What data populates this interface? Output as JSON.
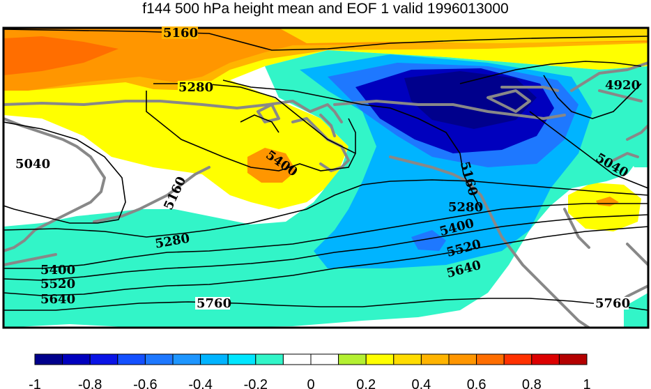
{
  "title": "f144 500 hPa height mean and EOF 1 valid 1996013000",
  "colorbar": {
    "colors": [
      "#00008c",
      "#0000be",
      "#0a14e6",
      "#1450ff",
      "#1e78ff",
      "#1e96ff",
      "#00b4ff",
      "#00e6ff",
      "#32f5c8",
      "#ffffff",
      "#ffffff",
      "#b4f032",
      "#ffff00",
      "#ffdc00",
      "#ffb400",
      "#ff9600",
      "#ff6e00",
      "#ff3200",
      "#dc0000",
      "#b40000"
    ],
    "tick_labels": [
      "-1",
      "-0.8",
      "-0.6",
      "-0.4",
      "-0.2",
      "0",
      "0.2",
      "0.4",
      "0.6",
      "0.8",
      "1"
    ]
  },
  "contour_labels": {
    "c5160_top": "5160",
    "c5280_left": "5280",
    "c5400_center": "5400",
    "c5040_left": "5040",
    "c5160_left": "5160",
    "c5280_lowleft": "5280",
    "c5400_lowleft": "5400",
    "c5520_lowleft": "5520",
    "c5640_lowleft": "5640",
    "c5760_center": "5760",
    "c4920_right": "4920",
    "c5040_right": "5040",
    "c5160_right": "5160",
    "c5280_right": "5280",
    "c5400_right": "5400",
    "c5520_right": "5520",
    "c5640_right": "5640",
    "c5760_right": "5760"
  }
}
